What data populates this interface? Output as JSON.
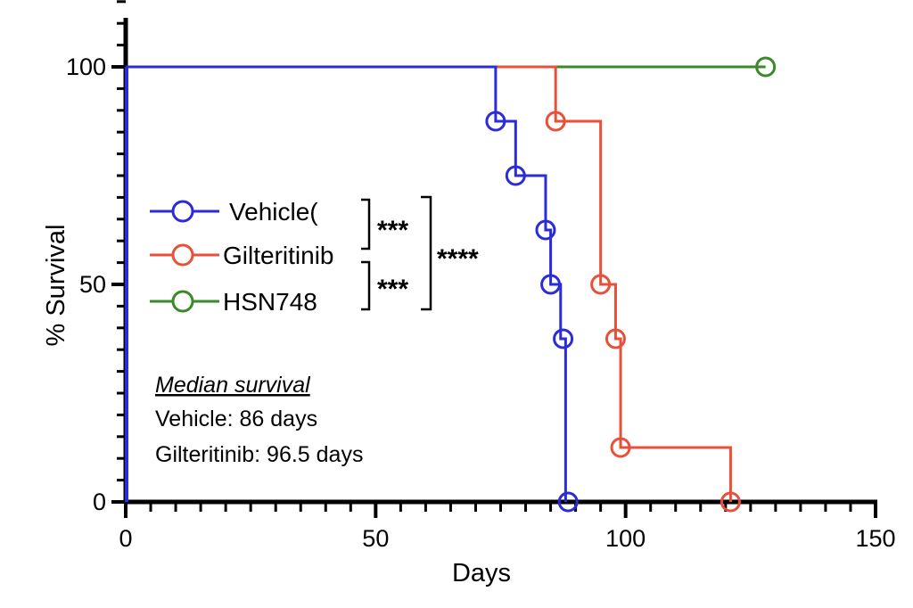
{
  "chart_data": {
    "type": "line",
    "subtype": "kaplan-meier",
    "xlabel": "Days",
    "ylabel": "% Survival",
    "xlim": [
      0,
      150
    ],
    "ylim": [
      0,
      100
    ],
    "x_ticks": [
      "0",
      "50",
      "100",
      "150"
    ],
    "y_ticks": [
      "0",
      "50",
      "100"
    ],
    "grid": false,
    "legend_position": "left-middle",
    "series": [
      {
        "name": "Vehicle(",
        "color": "#2b2bd9",
        "steps": [
          [
            0,
            100
          ],
          [
            74,
            100
          ],
          [
            74,
            87.5
          ],
          [
            78,
            87.5
          ],
          [
            78,
            75
          ],
          [
            84,
            75
          ],
          [
            84,
            62.5
          ],
          [
            85,
            62.5
          ],
          [
            85,
            50
          ],
          [
            87,
            50
          ],
          [
            87,
            37.5
          ],
          [
            88,
            37.5
          ],
          [
            88,
            0
          ]
        ],
        "markers": [
          [
            74,
            87.5
          ],
          [
            78,
            75
          ],
          [
            84,
            62.5
          ],
          [
            85,
            50
          ],
          [
            87.5,
            37.5
          ],
          [
            88.5,
            0
          ]
        ]
      },
      {
        "name": "Gilteritinib",
        "color": "#e8503a",
        "steps": [
          [
            0,
            100
          ],
          [
            86,
            100
          ],
          [
            86,
            87.5
          ],
          [
            95,
            87.5
          ],
          [
            95,
            50
          ],
          [
            98,
            50
          ],
          [
            98,
            37.5
          ],
          [
            99,
            37.5
          ],
          [
            99,
            12.5
          ],
          [
            121,
            12.5
          ],
          [
            121,
            0
          ]
        ],
        "markers": [
          [
            86,
            87.5
          ],
          [
            95,
            50
          ],
          [
            98,
            37.5
          ],
          [
            99,
            12.5
          ],
          [
            121,
            0
          ]
        ]
      },
      {
        "name": "HSN748",
        "color": "#3a8a2a",
        "steps": [
          [
            0,
            100
          ],
          [
            128,
            100
          ]
        ],
        "markers": [
          [
            128,
            100
          ]
        ]
      }
    ],
    "significance": {
      "vehicle_vs_gilteritinib": "***",
      "gilteritinib_vs_hsn748": "***",
      "vehicle_vs_hsn748": "****"
    },
    "median_survival": {
      "title": "Median survival",
      "vehicle": "Vehicle: 86 days",
      "gilteritinib": "Gilteritinib:  96.5 days"
    }
  }
}
